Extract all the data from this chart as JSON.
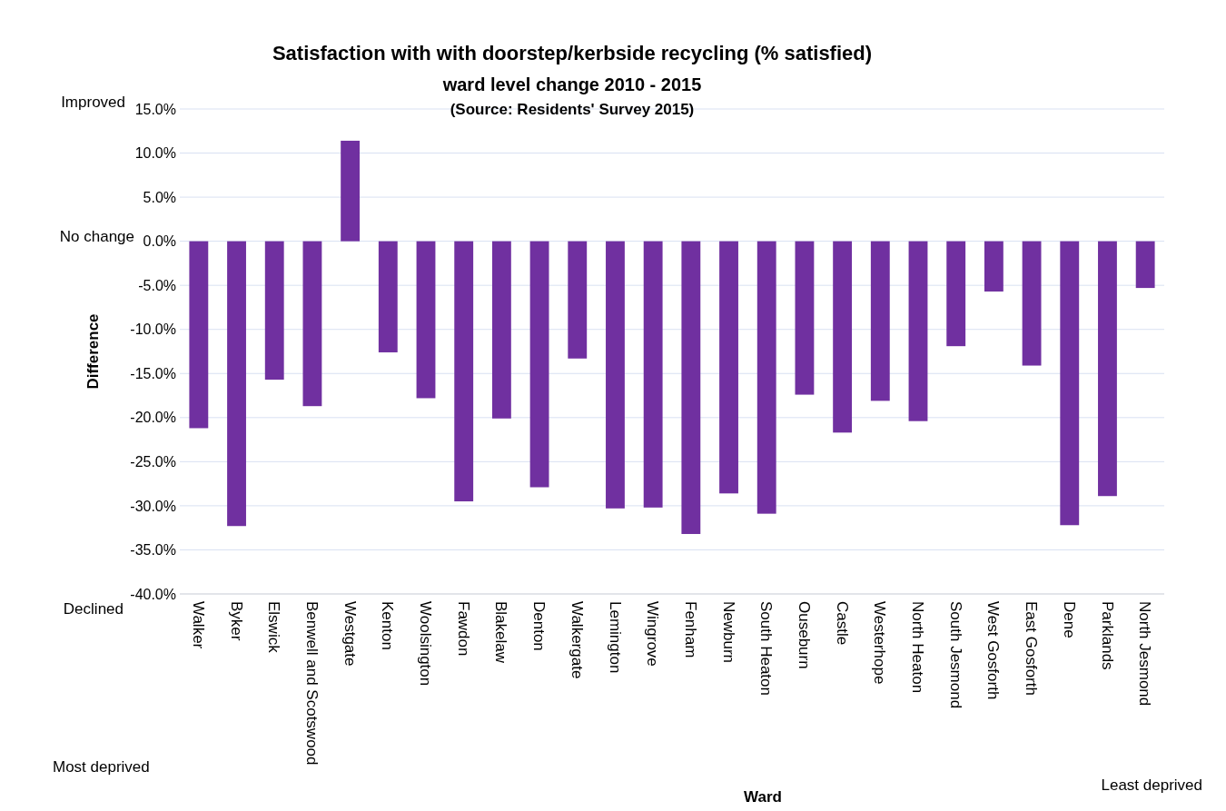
{
  "chart_data": {
    "type": "bar",
    "title": "Satisfaction with with doorstep/kerbside recycling (% satisfied)",
    "subtitle": "ward level change 2010 - 2015",
    "xlabel": "Ward",
    "ylabel": "Difference",
    "categories": [
      "Walker",
      "Byker",
      "Elswick",
      "Benwell and Scotswood",
      "Westgate",
      "Kenton",
      "Woolsington",
      "Fawdon",
      "Blakelaw",
      "Denton",
      "Walkergate",
      "Lemington",
      "Wingrove",
      "Fenham",
      "Newburn",
      "South Heaton",
      "Ouseburn",
      "Castle",
      "Westerhope",
      "North Heaton",
      "South Jesmond",
      "West Gosforth",
      "East Gosforth",
      "Dene",
      "Parklands",
      "North Jesmond"
    ],
    "values": [
      -21.2,
      -32.3,
      -15.7,
      -18.7,
      11.4,
      -12.6,
      -17.8,
      -29.5,
      -20.1,
      -27.9,
      -13.3,
      -30.3,
      -30.2,
      -33.2,
      -28.6,
      -30.9,
      -17.4,
      -21.7,
      -18.1,
      -20.4,
      -11.9,
      -5.7,
      -14.1,
      -32.2,
      -28.9,
      -5.3
    ],
    "color": "#7030a0",
    "ylim": [
      -40,
      15
    ],
    "yticks": [
      {
        "value": -40,
        "label": "-40.0%"
      },
      {
        "value": -35,
        "label": "-35.0%"
      },
      {
        "value": -30,
        "label": "-30.0%"
      },
      {
        "value": -25,
        "label": "-25.0%"
      },
      {
        "value": -20,
        "label": "-20.0%"
      },
      {
        "value": -15,
        "label": "-15.0%"
      },
      {
        "value": -10,
        "label": "-10.0%"
      },
      {
        "value": -5,
        "label": "-5.0%"
      },
      {
        "value": 0,
        "label": "0.0%"
      },
      {
        "value": 5,
        "label": "5.0%"
      },
      {
        "value": 10,
        "label": "10.0%"
      },
      {
        "value": 15,
        "label": "15.0%"
      }
    ],
    "grid": "y",
    "annotations": [
      "(Source: Residents' Survey 2015)",
      "Most deprived",
      "Least deprived",
      "Improved",
      "No change",
      "Declined"
    ]
  }
}
